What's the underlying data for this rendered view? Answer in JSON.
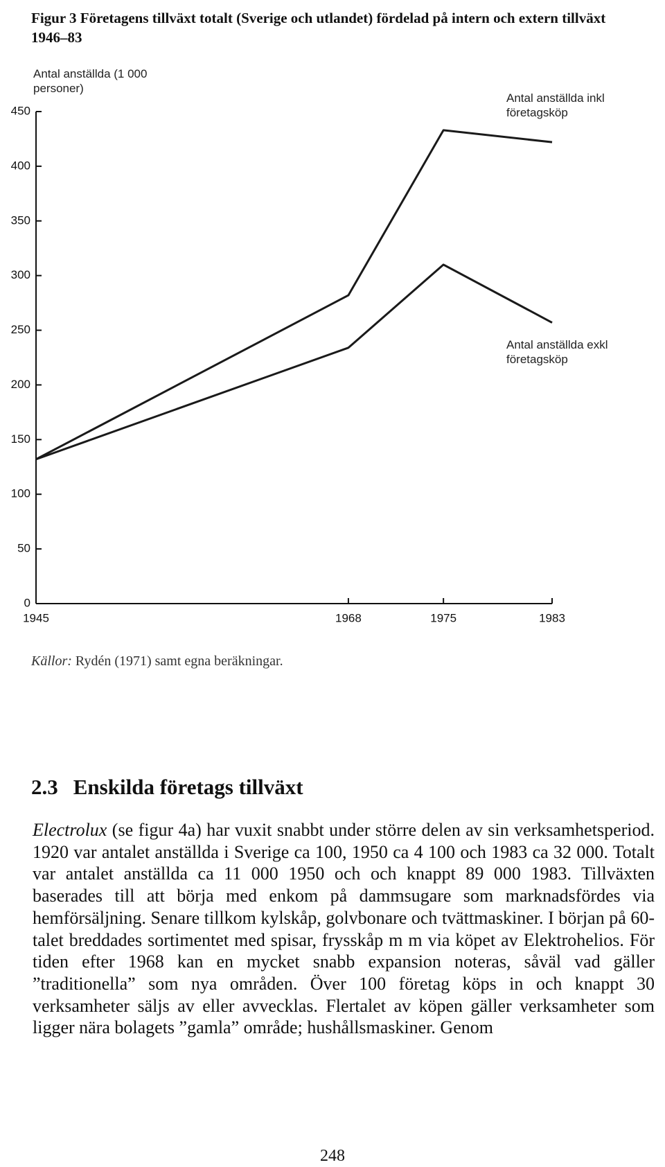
{
  "figure": {
    "caption": "Figur 3 Företagens tillväxt totalt (Sverige och utlandet) fördelad på intern och extern tillväxt 1946–83"
  },
  "chart_data": {
    "type": "line",
    "y_label": "Antal anställda (1 000 personer)",
    "x": [
      1945,
      1968,
      1975,
      1983
    ],
    "xlim": [
      1945,
      1983
    ],
    "xticks": [
      1945,
      1968,
      1975,
      1983
    ],
    "ylim": [
      0,
      450
    ],
    "yticks": [
      0,
      50,
      100,
      150,
      200,
      250,
      300,
      350,
      400,
      450
    ],
    "series": [
      {
        "name": "Antal anställda inkl företagsköp",
        "color": "#1a1a1a",
        "values": [
          132,
          282,
          433,
          422
        ]
      },
      {
        "name": "Antal anställda exkl företagsköp",
        "color": "#1a1a1a",
        "values": [
          132,
          234,
          310,
          257
        ]
      }
    ]
  },
  "source": {
    "label": "Källor:",
    "text": "Rydén (1971) samt egna beräkningar."
  },
  "section": {
    "number": "2.3",
    "title": "Enskilda företags tillväxt"
  },
  "body": {
    "lead": "Electrolux",
    "text": "(se figur 4a) har vuxit snabbt under större delen av sin verksamhetsperiod. 1920 var antalet anställda i Sverige ca 100, 1950 ca 4 100 och 1983 ca 32 000. Totalt var antalet anställda ca 11 000 1950 och och knappt 89 000 1983. Tillväxten baserades till att börja med enkom på dammsugare som marknadsfördes via hemförsäljning. Senare tillkom kylskåp, golvbonare och tvättmaskiner. I början på 60-talet breddades sortimentet med spisar, frysskåp m m via köpet av Elektrohelios. För tiden efter 1968 kan en mycket snabb expansion noteras, såväl vad gäller ”traditionella” som nya områden. Över 100 företag köps in och knappt 30 verksamheter säljs av eller avvecklas. Flertalet av köpen gäller verksamheter som ligger nära bolagets ”gamla” område; hushållsmaskiner. Genom"
  },
  "page_number": "248"
}
